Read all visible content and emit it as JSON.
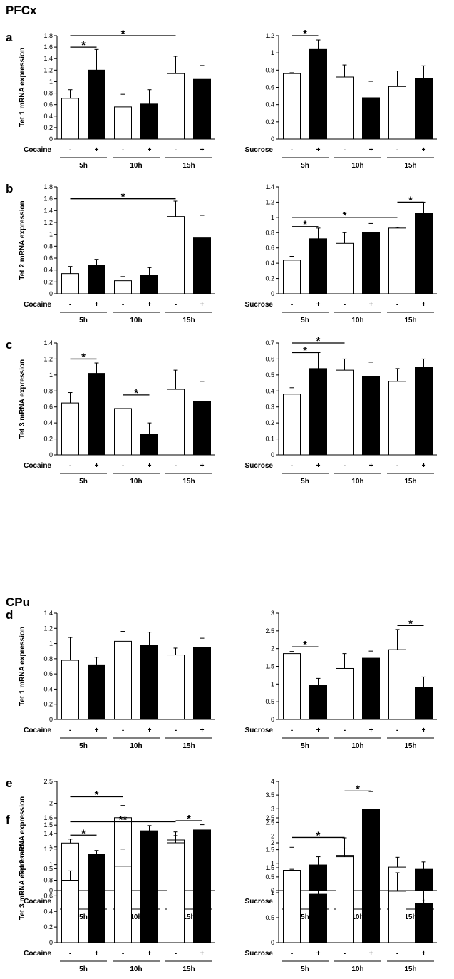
{
  "sections": [
    "PFCx",
    "CPu"
  ],
  "charts": [
    {
      "panel": "a",
      "ylabel": "Tet 1 mRNA expression",
      "left": {
        "type": "bar",
        "condition_label": "Cocaine",
        "ylim": [
          0,
          1.8
        ],
        "yticks": [
          0,
          0.2,
          0.4,
          0.6,
          0.8,
          1,
          1.2,
          1.4,
          1.6,
          1.8
        ],
        "groups": [
          "5h",
          "10h",
          "15h"
        ],
        "signs": [
          "-",
          "+"
        ],
        "series": [
          {
            "name": "-",
            "values": [
              0.71,
              0.56,
              1.14
            ],
            "errors": [
              0.15,
              0.22,
              0.3
            ]
          },
          {
            "name": "+",
            "values": [
              1.2,
              0.61,
              1.04
            ],
            "errors": [
              0.36,
              0.25,
              0.24
            ]
          }
        ],
        "significance": [
          {
            "label": "*",
            "from": 0,
            "to": 1,
            "y": 1.6
          },
          {
            "label": "*",
            "from": 0,
            "to": 4,
            "y": 1.8
          }
        ]
      },
      "right": {
        "type": "bar",
        "condition_label": "Sucrose",
        "ylim": [
          0,
          1.2
        ],
        "yticks": [
          0,
          0.2,
          0.4,
          0.6,
          0.8,
          1,
          1.2
        ],
        "groups": [
          "5h",
          "10h",
          "15h"
        ],
        "signs": [
          "-",
          "+"
        ],
        "series": [
          {
            "name": "-",
            "values": [
              0.76,
              0.72,
              0.61
            ],
            "errors": [
              0.01,
              0.14,
              0.18
            ]
          },
          {
            "name": "+",
            "values": [
              1.04,
              0.48,
              0.7
            ],
            "errors": [
              0.11,
              0.19,
              0.15
            ]
          }
        ],
        "significance": [
          {
            "label": "*",
            "from": 0,
            "to": 1,
            "y": 1.2
          }
        ]
      }
    },
    {
      "panel": "b",
      "ylabel": "Tet 2 mRNA expression",
      "left": {
        "type": "bar",
        "condition_label": "Cocaine",
        "ylim": [
          0,
          1.8
        ],
        "yticks": [
          0,
          0.2,
          0.4,
          0.6,
          0.8,
          1,
          1.2,
          1.4,
          1.6,
          1.8
        ],
        "groups": [
          "5h",
          "10h",
          "15h"
        ],
        "signs": [
          "-",
          "+"
        ],
        "series": [
          {
            "name": "-",
            "values": [
              0.34,
              0.22,
              1.3
            ],
            "errors": [
              0.12,
              0.07,
              0.26
            ]
          },
          {
            "name": "+",
            "values": [
              0.48,
              0.31,
              0.94
            ],
            "errors": [
              0.1,
              0.13,
              0.38
            ]
          }
        ],
        "significance": [
          {
            "label": "*",
            "from": 0,
            "to": 4,
            "y": 1.6
          }
        ]
      },
      "right": {
        "type": "bar",
        "condition_label": "Sucrose",
        "ylim": [
          0,
          1.4
        ],
        "yticks": [
          0,
          0.2,
          0.4,
          0.6,
          0.8,
          1,
          1.2,
          1.4
        ],
        "groups": [
          "5h",
          "10h",
          "15h"
        ],
        "signs": [
          "-",
          "+"
        ],
        "series": [
          {
            "name": "-",
            "values": [
              0.44,
              0.66,
              0.86
            ],
            "errors": [
              0.05,
              0.14,
              0.01
            ]
          },
          {
            "name": "+",
            "values": [
              0.72,
              0.8,
              1.05
            ],
            "errors": [
              0.14,
              0.12,
              0.15
            ]
          }
        ],
        "significance": [
          {
            "label": "*",
            "from": 0,
            "to": 1,
            "y": 0.88
          },
          {
            "label": "*",
            "from": 0,
            "to": 4,
            "y": 1.0
          },
          {
            "label": "*",
            "from": 4,
            "to": 5,
            "y": 1.2
          }
        ]
      }
    },
    {
      "panel": "c",
      "ylabel": "Tet 3 mRNA expression",
      "left": {
        "type": "bar",
        "condition_label": "Cocaine",
        "ylim": [
          0,
          1.4
        ],
        "yticks": [
          0,
          0.2,
          0.4,
          0.6,
          0.8,
          1,
          1.2,
          1.4
        ],
        "groups": [
          "5h",
          "10h",
          "15h"
        ],
        "signs": [
          "-",
          "+"
        ],
        "series": [
          {
            "name": "-",
            "values": [
              0.65,
              0.58,
              0.82
            ],
            "errors": [
              0.13,
              0.12,
              0.24
            ]
          },
          {
            "name": "+",
            "values": [
              1.02,
              0.26,
              0.67
            ],
            "errors": [
              0.13,
              0.14,
              0.25
            ]
          }
        ],
        "significance": [
          {
            "label": "*",
            "from": 0,
            "to": 1,
            "y": 1.2
          },
          {
            "label": "*",
            "from": 2,
            "to": 3,
            "y": 0.75
          }
        ]
      },
      "right": {
        "type": "bar",
        "condition_label": "Sucrose",
        "ylim": [
          0,
          0.7
        ],
        "yticks": [
          0,
          0.1,
          0.2,
          0.3,
          0.4,
          0.5,
          0.6,
          0.7
        ],
        "groups": [
          "5h",
          "10h",
          "15h"
        ],
        "signs": [
          "-",
          "+"
        ],
        "series": [
          {
            "name": "-",
            "values": [
              0.38,
              0.53,
              0.46
            ],
            "errors": [
              0.04,
              0.07,
              0.08
            ]
          },
          {
            "name": "+",
            "values": [
              0.54,
              0.49,
              0.55
            ],
            "errors": [
              0.1,
              0.09,
              0.05
            ]
          }
        ],
        "significance": [
          {
            "label": "*",
            "from": 0,
            "to": 1,
            "y": 0.64
          },
          {
            "label": "*",
            "from": 0,
            "to": 2,
            "y": 0.7
          }
        ]
      }
    },
    {
      "panel": "d",
      "ylabel": "Tet 1 mRNA expression",
      "left": {
        "type": "bar",
        "condition_label": "Cocaine",
        "ylim": [
          0,
          1.4
        ],
        "yticks": [
          0,
          0.2,
          0.4,
          0.6,
          0.8,
          1,
          1.2,
          1.4
        ],
        "groups": [
          "5h",
          "10h",
          "15h"
        ],
        "signs": [
          "-",
          "+"
        ],
        "series": [
          {
            "name": "-",
            "values": [
              0.78,
              1.03,
              0.85
            ],
            "errors": [
              0.3,
              0.13,
              0.09
            ]
          },
          {
            "name": "+",
            "values": [
              0.72,
              0.98,
              0.95
            ],
            "errors": [
              0.1,
              0.17,
              0.12
            ]
          }
        ],
        "significance": []
      },
      "right": {
        "type": "bar",
        "condition_label": "Sucrose",
        "ylim": [
          0,
          3
        ],
        "yticks": [
          0,
          0.5,
          1,
          1.5,
          2,
          2.5,
          3
        ],
        "groups": [
          "5h",
          "10h",
          "15h"
        ],
        "signs": [
          "-",
          "+"
        ],
        "series": [
          {
            "name": "-",
            "values": [
              1.86,
              1.44,
              1.97
            ],
            "errors": [
              0.06,
              0.42,
              0.57
            ]
          },
          {
            "name": "+",
            "values": [
              0.96,
              1.73,
              0.91
            ],
            "errors": [
              0.2,
              0.2,
              0.29
            ]
          }
        ],
        "significance": [
          {
            "label": "*",
            "from": 0,
            "to": 1,
            "y": 2.05
          },
          {
            "label": "*",
            "from": 4,
            "to": 5,
            "y": 2.65
          }
        ]
      }
    },
    {
      "panel": "e",
      "ylabel": "Tet 2 mRNA expression",
      "left": {
        "type": "bar",
        "condition_label": "Cocaine",
        "ylim": [
          0,
          2.5
        ],
        "yticks": [
          0,
          0.5,
          1,
          1.5,
          2,
          2.5
        ],
        "groups": [
          "5h",
          "10h",
          "15h"
        ],
        "signs": [
          "-",
          "+"
        ],
        "series": [
          {
            "name": "-",
            "values": [
              1.09,
              1.67,
              1.16
            ],
            "errors": [
              0.09,
              0.28,
              0.1
            ]
          },
          {
            "name": "+",
            "values": [
              0.84,
              1.37,
              1.39
            ],
            "errors": [
              0.08,
              0.12,
              0.12
            ]
          }
        ],
        "significance": [
          {
            "label": "*",
            "from": 0,
            "to": 1,
            "y": 1.27
          },
          {
            "label": "*",
            "from": 0,
            "to": 2,
            "y": 2.15
          },
          {
            "label": "*",
            "from": 4,
            "to": 5,
            "y": 1.6
          }
        ]
      },
      "right": {
        "type": "bar",
        "condition_label": "Sucrose",
        "ylim": [
          0,
          4
        ],
        "yticks": [
          0,
          0.5,
          1,
          1.5,
          2,
          2.5,
          3,
          3.5,
          4
        ],
        "groups": [
          "5h",
          "10h",
          "15h"
        ],
        "signs": [
          "-",
          "+"
        ],
        "series": [
          {
            "name": "-",
            "values": [
              0.56,
              1.29,
              0.86
            ],
            "errors": [
              0.22,
              0.24,
              0.36
            ]
          },
          {
            "name": "+",
            "values": [
              0.94,
              2.98,
              0.78
            ],
            "errors": [
              0.3,
              0.65,
              0.27
            ]
          }
        ],
        "significance": [
          {
            "label": "*",
            "from": 0,
            "to": 2,
            "y": 1.95
          },
          {
            "label": "*",
            "from": 2,
            "to": 3,
            "y": 3.65
          }
        ]
      }
    },
    {
      "panel": "f",
      "ylabel": "Tet 3 mRNA expression",
      "left": {
        "type": "bar",
        "condition_label": "Cocaine",
        "ylim": [
          0,
          1.6
        ],
        "yticks": [
          0,
          0.2,
          0.4,
          0.6,
          0.8,
          1,
          1.2,
          1.4,
          1.6
        ],
        "groups": [
          "5h",
          "10h",
          "15h"
        ],
        "signs": [
          "-",
          "+"
        ],
        "series": [
          {
            "name": "-",
            "values": [
              0.8,
              0.98,
              1.28
            ],
            "errors": [
              0.12,
              0.22,
              0.14
            ]
          },
          {
            "name": "+",
            "values": [
              0.67,
              0.87,
              1.16
            ],
            "errors": [
              0.1,
              0.22,
              0.25
            ]
          }
        ],
        "significance": [
          {
            "label": "**",
            "from": 0,
            "to": 4,
            "y": 1.55
          }
        ]
      },
      "right": {
        "type": "bar",
        "condition_label": "Sucrose",
        "ylim": [
          0,
          2.5
        ],
        "yticks": [
          0,
          0.5,
          1,
          1.5,
          2,
          2.5
        ],
        "groups": [
          "5h",
          "10h",
          "15h"
        ],
        "signs": [
          "-",
          "+"
        ],
        "series": [
          {
            "name": "-",
            "values": [
              1.45,
              1.72,
              1.03
            ],
            "errors": [
              0.46,
              0.38,
              0.37
            ]
          },
          {
            "name": "+",
            "values": [
              0.97,
              1.75,
              0.79
            ],
            "errors": [
              0.19,
              0.28,
              0.28
            ]
          }
        ],
        "significance": []
      }
    }
  ]
}
